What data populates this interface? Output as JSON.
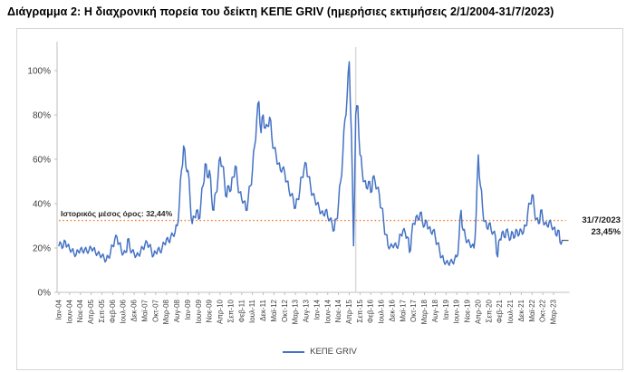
{
  "title": "Διάγραμμα 2: Η διαχρονική πορεία του δείκτη ΚΕΠΕ GRIV (ημερήσιες εκτιμήσεις 2/1/2004-31/7/2023)",
  "chart_data": {
    "type": "line",
    "title": "Διάγραμμα 2: Η διαχρονική πορεία του δείκτη ΚΕΠΕ GRIV (ημερήσιες εκτιμήσεις 2/1/2004-31/7/2023)",
    "x_monthly_range": {
      "start": "Ιαν-04",
      "end": "Ιουλ-23"
    },
    "x_tick_labels": [
      "Ιαν-04",
      "Ιουν-04",
      "Νοε-04",
      "Απρ-05",
      "Σεπ-05",
      "Φεβ-06",
      "Ιουλ-06",
      "Δεκ-06",
      "Μαϊ-07",
      "Οκτ-07",
      "Μαρ-08",
      "Αυγ-08",
      "Ιαν-09",
      "Ιουν-09",
      "Νοε-09",
      "Απρ-10",
      "Σεπ-10",
      "Φεβ-11",
      "Ιουλ-11",
      "Δεκ-11",
      "Μαϊ-12",
      "Οκτ-12",
      "Μαρ-13",
      "Αυγ-13",
      "Ιαν-14",
      "Ιουν-14",
      "Νοε-14",
      "Απρ-15",
      "Σεπ-15",
      "Φεβ-16",
      "Ιουλ-16",
      "Δεκ-16",
      "Μαϊ-17",
      "Οκτ-17",
      "Μαρ-18",
      "Αυγ-18",
      "Ιαν-19",
      "Ιουν-19",
      "Νοε-19",
      "Απρ-20",
      "Σεπ-20",
      "Φεβ-21",
      "Ιουλ-21",
      "Δεκ-21",
      "Μαϊ-22",
      "Οκτ-22",
      "Μαρ-23"
    ],
    "x_tick_interval_months": 5,
    "y_tick_labels": [
      "0%",
      "20%",
      "40%",
      "60%",
      "80%",
      "100%"
    ],
    "ylim_pct": [
      0,
      110
    ],
    "grid": "none",
    "series": [
      {
        "name": "ΚΕΠΕ GRIV",
        "color": "#4472C4",
        "monthly_values_pct": [
          21,
          22,
          20.5,
          23,
          21,
          19.5,
          19,
          17.5,
          17,
          18.5,
          19.5,
          18.5,
          19.5,
          18.5,
          19,
          20,
          19.5,
          18,
          17.5,
          17,
          16.5,
          15.5,
          14.5,
          16,
          18,
          21,
          24,
          25,
          22,
          19,
          17.5,
          18,
          24,
          20,
          18.5,
          17.5,
          16.5,
          17,
          18.5,
          20,
          21.5,
          22.5,
          21,
          19,
          16.5,
          18,
          19.5,
          18.5,
          20,
          22,
          24,
          23,
          25,
          26,
          27,
          30,
          40,
          55,
          66,
          57,
          55,
          42,
          31,
          34,
          37,
          33,
          40,
          48,
          58,
          52,
          55,
          43,
          37,
          45,
          52,
          61,
          57,
          50,
          43,
          48,
          46,
          52,
          57,
          50,
          45,
          42,
          41,
          37,
          42,
          48,
          55,
          66,
          78,
          86,
          72,
          80,
          74,
          75,
          79,
          70,
          65,
          62,
          58,
          55,
          56,
          54,
          50,
          46,
          44,
          42,
          38,
          42,
          46,
          52,
          56,
          58,
          52,
          48,
          44,
          42,
          40,
          38,
          36,
          35,
          37,
          34,
          33,
          31,
          28,
          33,
          40,
          50,
          62,
          78,
          88,
          104,
          72,
          21,
          80,
          84,
          62,
          55,
          50,
          47,
          50,
          45,
          52,
          50,
          47,
          44,
          38,
          32,
          26,
          21,
          20.5,
          21,
          21.5,
          20.5,
          22,
          26,
          28,
          27,
          25,
          18,
          26,
          31,
          34,
          33,
          36,
          32,
          30,
          32,
          29,
          27,
          28,
          25,
          22,
          19,
          16,
          14,
          13.5,
          13,
          14,
          13.5,
          15,
          16,
          24,
          37,
          28,
          25,
          23,
          22,
          21,
          20,
          35,
          62,
          48,
          38,
          32,
          29,
          31,
          28,
          27,
          25,
          16,
          24,
          27,
          25,
          28,
          26,
          24,
          27,
          25,
          28,
          26,
          28,
          27,
          30,
          36,
          40,
          44,
          38,
          33,
          31,
          37,
          33,
          31,
          30,
          32,
          30,
          29,
          26,
          28,
          22.5,
          23.45
        ]
      }
    ],
    "average_line": {
      "label": "Ιστορικός μέσος όρος: 32,44%",
      "value_pct": 32.44,
      "color": "#ED7D31",
      "style": "dotted"
    },
    "vertical_marker": {
      "at": "Ιουλ-15",
      "month_index": 138,
      "color": "#D9D9D9"
    },
    "end_annotation": {
      "date": "31/7/2023",
      "value_label": "23,45%",
      "value_pct": 23.45
    },
    "legend": {
      "label": "ΚΕΠΕ GRIV",
      "position": "bottom-center"
    }
  }
}
